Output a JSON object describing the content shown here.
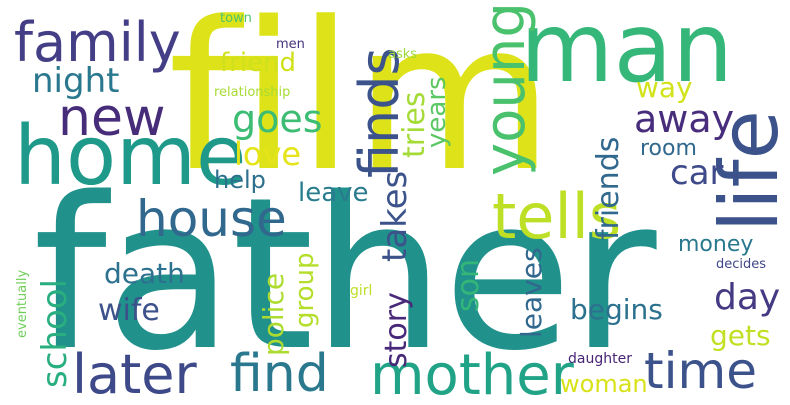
{
  "words": [
    {
      "id": "father",
      "text": "father",
      "color": "#21918c"
    },
    {
      "id": "film",
      "text": "film",
      "color": "#dde318"
    },
    {
      "id": "man",
      "text": "man",
      "color": "#35b779"
    },
    {
      "id": "life",
      "text": "life",
      "color": "#3b528b"
    },
    {
      "id": "home",
      "text": "home",
      "color": "#1f9a8a"
    },
    {
      "id": "family",
      "text": "family",
      "color": "#433e85"
    },
    {
      "id": "new",
      "text": "new",
      "color": "#472c7a"
    },
    {
      "id": "night",
      "text": "night",
      "color": "#2a788e"
    },
    {
      "id": "finds",
      "text": "finds",
      "color": "#3b528b"
    },
    {
      "id": "young",
      "text": "young",
      "color": "#4ac16d"
    },
    {
      "id": "tells",
      "text": "tells",
      "color": "#bddf26"
    },
    {
      "id": "house",
      "text": "house",
      "color": "#31688e"
    },
    {
      "id": "mother",
      "text": "mother",
      "color": "#20a386"
    },
    {
      "id": "later",
      "text": "later",
      "color": "#3e4989"
    },
    {
      "id": "find",
      "text": "find",
      "color": "#2a788e"
    },
    {
      "id": "time",
      "text": "time",
      "color": "#3b528b"
    },
    {
      "id": "friend",
      "text": "friend",
      "color": "#d0e11c"
    },
    {
      "id": "goes",
      "text": "goes",
      "color": "#3dbc74"
    },
    {
      "id": "love",
      "text": "love",
      "color": "#e5e419"
    },
    {
      "id": "away",
      "text": "away",
      "color": "#472d7b"
    },
    {
      "id": "car",
      "text": "car",
      "color": "#3e4a89"
    },
    {
      "id": "way",
      "text": "way",
      "color": "#d2e21b"
    },
    {
      "id": "room",
      "text": "room",
      "color": "#31688e"
    },
    {
      "id": "tries",
      "text": "tries",
      "color": "#a5db36"
    },
    {
      "id": "years",
      "text": "years",
      "color": "#5cc863"
    },
    {
      "id": "friends",
      "text": "friends",
      "color": "#31688e"
    },
    {
      "id": "takes",
      "text": "takes",
      "color": "#3b528b"
    },
    {
      "id": "help",
      "text": "help",
      "color": "#2d708e"
    },
    {
      "id": "leave",
      "text": "leave",
      "color": "#287c8e"
    },
    {
      "id": "money",
      "text": "money",
      "color": "#2a788e"
    },
    {
      "id": "death",
      "text": "death",
      "color": "#2c718e"
    },
    {
      "id": "wife",
      "text": "wife",
      "color": "#3b528b"
    },
    {
      "id": "school",
      "text": "school",
      "color": "#29af7f"
    },
    {
      "id": "police",
      "text": "police",
      "color": "#addc30"
    },
    {
      "id": "group",
      "text": "group",
      "color": "#b5de2b"
    },
    {
      "id": "story",
      "text": "story",
      "color": "#482878"
    },
    {
      "id": "son",
      "text": "son",
      "color": "#34b679"
    },
    {
      "id": "leaves",
      "text": "leaves",
      "color": "#31688e"
    },
    {
      "id": "begins",
      "text": "begins",
      "color": "#2c728e"
    },
    {
      "id": "day",
      "text": "day",
      "color": "#443a83"
    },
    {
      "id": "gets",
      "text": "gets",
      "color": "#c2df23"
    },
    {
      "id": "woman",
      "text": "woman",
      "color": "#d8e219"
    },
    {
      "id": "daughter",
      "text": "daughter",
      "color": "#482475"
    },
    {
      "id": "decides",
      "text": "decides",
      "color": "#404688"
    },
    {
      "id": "girl",
      "text": "girl",
      "color": "#bddf26"
    },
    {
      "id": "eventually",
      "text": "eventually",
      "color": "#6ece58"
    },
    {
      "id": "relationship",
      "text": "relationship",
      "color": "#a8db34"
    },
    {
      "id": "town",
      "text": "town",
      "color": "#4ec36b"
    },
    {
      "id": "men",
      "text": "men",
      "color": "#46327e"
    },
    {
      "id": "asks",
      "text": "asks",
      "color": "#9bd93c"
    }
  ]
}
